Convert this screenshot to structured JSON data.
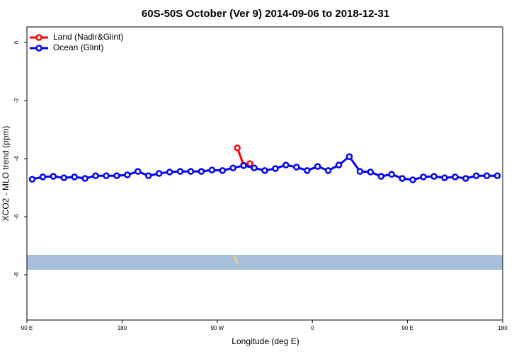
{
  "chart_data": {
    "type": "line",
    "title": "60S-50S October (Ver 9)   2014-09-06 to 2018-12-31",
    "x_label": "Longitude (deg E)",
    "y_label": "XCO2 - MLO trend (ppm)",
    "xlim": [
      90,
      540
    ],
    "ylim": [
      -9.56,
      0.54
    ],
    "xticks": [
      {
        "value": 90,
        "label": "90 E"
      },
      180,
      {
        "value": 270,
        "label": "90 W"
      },
      {
        "value": 360,
        "label": "0"
      },
      {
        "value": 450,
        "label": "90 E"
      },
      {
        "value": 540,
        "label": "180"
      }
    ],
    "yticks": [
      0,
      -2,
      -4,
      -6,
      -8
    ],
    "legend": "top-left",
    "series": [
      {
        "name": "Land (Nadir&Glint)",
        "color": "#ff0000",
        "x": [
          289,
          295,
          301
        ],
        "values": [
          -3.63,
          -4.22,
          -4.17
        ]
      },
      {
        "name": "Ocean (Glint)",
        "color": "#0000ff",
        "x": [
          95,
          105,
          115,
          125,
          135,
          145,
          155,
          165,
          175,
          185,
          195,
          205,
          215,
          225,
          235,
          245,
          255,
          265,
          275,
          285,
          295,
          305,
          315,
          325,
          335,
          345,
          355,
          365,
          375,
          385,
          395,
          405,
          415,
          425,
          435,
          445,
          455,
          465,
          475,
          485,
          495,
          505,
          515,
          525,
          535
        ],
        "values": [
          -4.71,
          -4.63,
          -4.61,
          -4.66,
          -4.63,
          -4.68,
          -4.59,
          -4.59,
          -4.59,
          -4.56,
          -4.44,
          -4.59,
          -4.51,
          -4.46,
          -4.44,
          -4.44,
          -4.44,
          -4.39,
          -4.41,
          -4.32,
          -4.24,
          -4.32,
          -4.41,
          -4.34,
          -4.22,
          -4.29,
          -4.41,
          -4.27,
          -4.41,
          -4.22,
          -3.93,
          -4.44,
          -4.46,
          -4.61,
          -4.54,
          -4.68,
          -4.73,
          -4.63,
          -4.61,
          -4.66,
          -4.63,
          -4.68,
          -4.59,
          -4.59,
          -4.59
        ]
      }
    ]
  }
}
